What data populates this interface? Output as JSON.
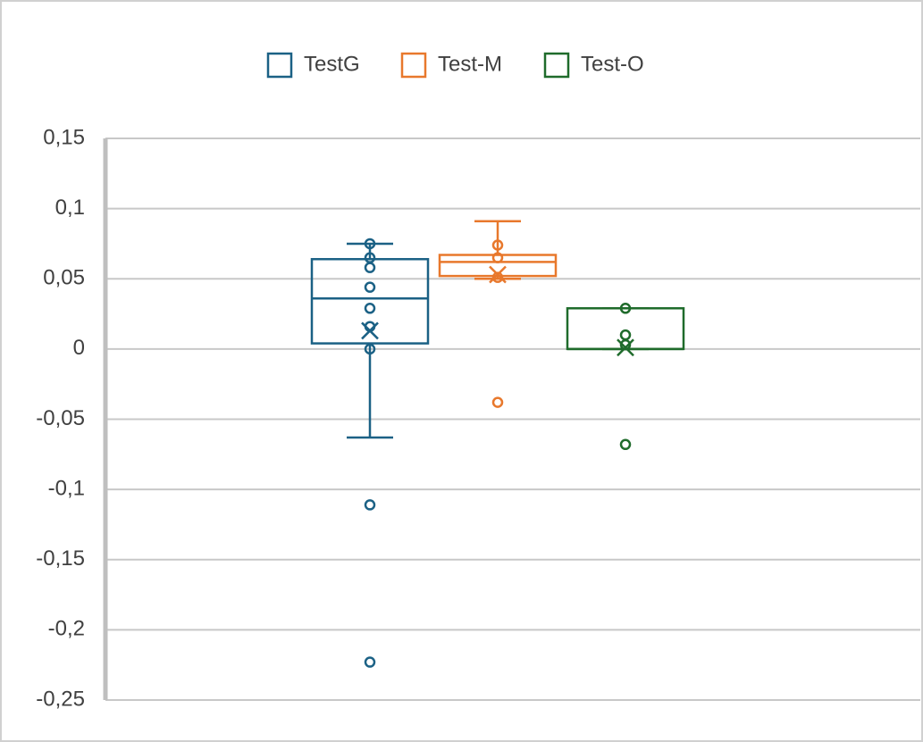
{
  "chart_data": {
    "type": "box",
    "ylim": [
      -0.25,
      0.15
    ],
    "yticks": [
      {
        "value": 0.15,
        "label": "0,15"
      },
      {
        "value": 0.1,
        "label": "0,1"
      },
      {
        "value": 0.05,
        "label": "0,05"
      },
      0,
      {
        "value": -0.05,
        "label": "-0,05"
      },
      {
        "value": -0.1,
        "label": "-0,1"
      },
      {
        "value": -0.15,
        "label": "-0,15"
      },
      {
        "value": -0.2,
        "label": "-0,2"
      },
      {
        "value": -0.25,
        "label": "-0,25"
      }
    ],
    "grid": true,
    "legend": "top",
    "series": [
      {
        "name": "TestG",
        "color": "#1b6185",
        "whisker_low": -0.063,
        "q1": 0.004,
        "median": 0.036,
        "q3": 0.064,
        "whisker_high": 0.075,
        "mean": 0.013,
        "points": [
          0.075,
          0.065,
          0.058,
          0.044,
          0.029,
          0.016,
          0
        ],
        "outliers": [
          -0.111,
          -0.223
        ]
      },
      {
        "name": "Test-M",
        "color": "#e8782c",
        "whisker_low": 0.05,
        "q1": 0.052,
        "median": 0.062,
        "q3": 0.067,
        "whisker_high": 0.091,
        "mean": 0.053,
        "points": [
          0.074,
          0.065,
          0.051
        ],
        "outliers": [
          -0.038
        ]
      },
      {
        "name": "Test-O",
        "color": "#1f6b2b",
        "whisker_low": 0,
        "q1": 0,
        "median": 0,
        "q3": 0.029,
        "whisker_high": 0.029,
        "mean": 0.001,
        "points": [
          0.029,
          0.01,
          0.003
        ],
        "outliers": [
          -0.068
        ]
      }
    ]
  }
}
